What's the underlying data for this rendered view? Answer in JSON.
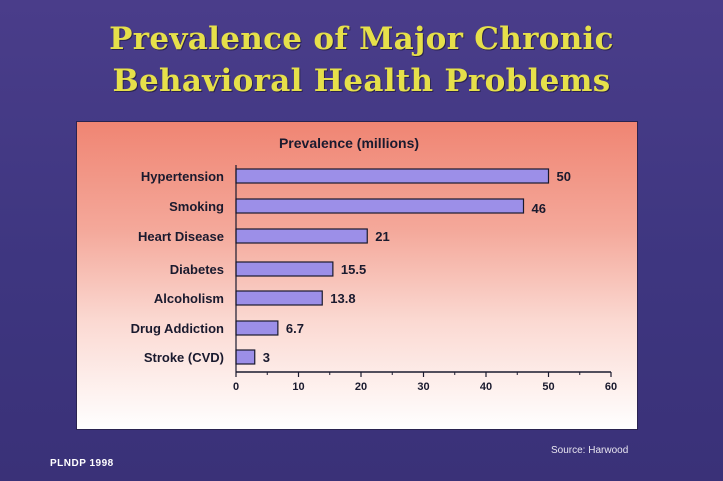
{
  "slide": {
    "title_line1": "Prevalence of Major Chronic",
    "title_line2": "Behavioral Health Problems",
    "footer_left": "PLNDP 1998",
    "source": "Source: Harwood"
  },
  "colors": {
    "background": "#3e3680",
    "title": "#e6e04a",
    "bar": "#9c8fe8",
    "bar_stroke": "#1a1a2e"
  },
  "chart_data": {
    "type": "bar",
    "orientation": "horizontal",
    "title": "Prevalence (millions)",
    "categories": [
      "Hypertension",
      "Smoking",
      "Heart Disease",
      "Diabetes",
      "Alcoholism",
      "Drug Addiction",
      "Stroke (CVD)"
    ],
    "values": [
      50,
      46,
      21,
      15.5,
      13.8,
      6.7,
      3
    ],
    "value_labels": [
      "50",
      "46",
      "21",
      "15.5",
      "13.8",
      "6.7",
      "3"
    ],
    "xlim": [
      0,
      60
    ],
    "xticks": [
      "0",
      "10",
      "20",
      "30",
      "40",
      "50",
      "60"
    ],
    "grid": false,
    "legend": "none"
  }
}
